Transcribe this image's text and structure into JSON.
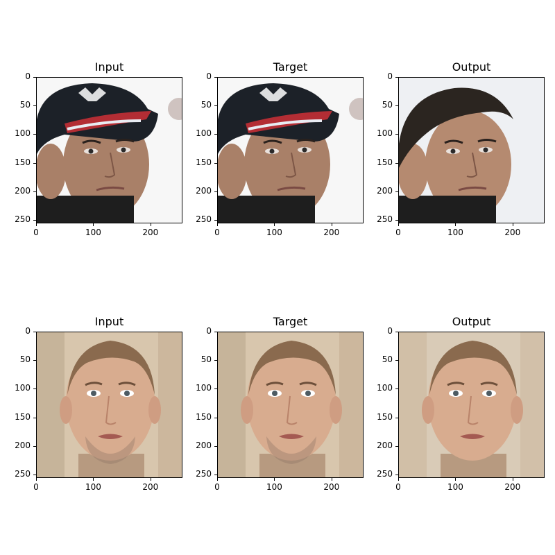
{
  "figure": {
    "panels": [
      {
        "title": "Input",
        "subject": "man-cap",
        "variant": "input"
      },
      {
        "title": "Target",
        "subject": "man-cap",
        "variant": "target"
      },
      {
        "title": "Output",
        "subject": "man-hair",
        "variant": "output"
      },
      {
        "title": "Input",
        "subject": "man-bald",
        "variant": "input"
      },
      {
        "title": "Target",
        "subject": "man-bald",
        "variant": "target"
      },
      {
        "title": "Output",
        "subject": "man-bald",
        "variant": "output"
      }
    ],
    "y_ticks": [
      "0",
      "50",
      "100",
      "150",
      "200",
      "250"
    ],
    "x_ticks": [
      "0",
      "100",
      "200"
    ],
    "tick_values_y": [
      0,
      50,
      100,
      150,
      200,
      250
    ],
    "tick_values_x": [
      0,
      100,
      200
    ],
    "axis_max": 256
  }
}
